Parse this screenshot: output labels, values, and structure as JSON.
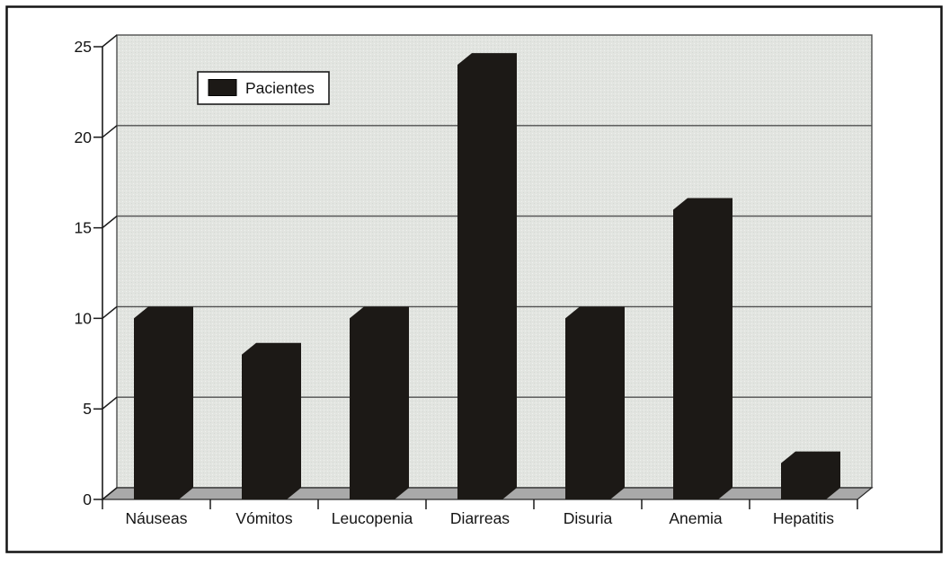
{
  "chart_data": {
    "type": "bar",
    "title": "",
    "legend": {
      "label": "Pacientes"
    },
    "categories": [
      "Náuseas",
      "Vómitos",
      "Leucopenia",
      "Diarreas",
      "Disuria",
      "Anemia",
      "Hepatitis"
    ],
    "values": [
      10,
      8,
      10,
      24,
      10,
      16,
      2
    ],
    "xlabel": "",
    "ylabel": "",
    "ylim": [
      0,
      25
    ],
    "yticks": [
      0,
      5,
      10,
      15,
      20,
      25
    ],
    "grid": true,
    "legend_position": "inside-top-left",
    "style": "3d-perspective-black-bars",
    "colors": {
      "bar": "#1c1916",
      "wall": "#e2e4e0",
      "wall_dot_light": "#eef3ef",
      "wall_dot_dark": "#d3dad4",
      "floor": "#a9a9a9",
      "grid": "#4f4f4f",
      "axis": "#1a1a1a",
      "text": "#141414",
      "frame": "#141414",
      "background": "#ffffff"
    }
  }
}
